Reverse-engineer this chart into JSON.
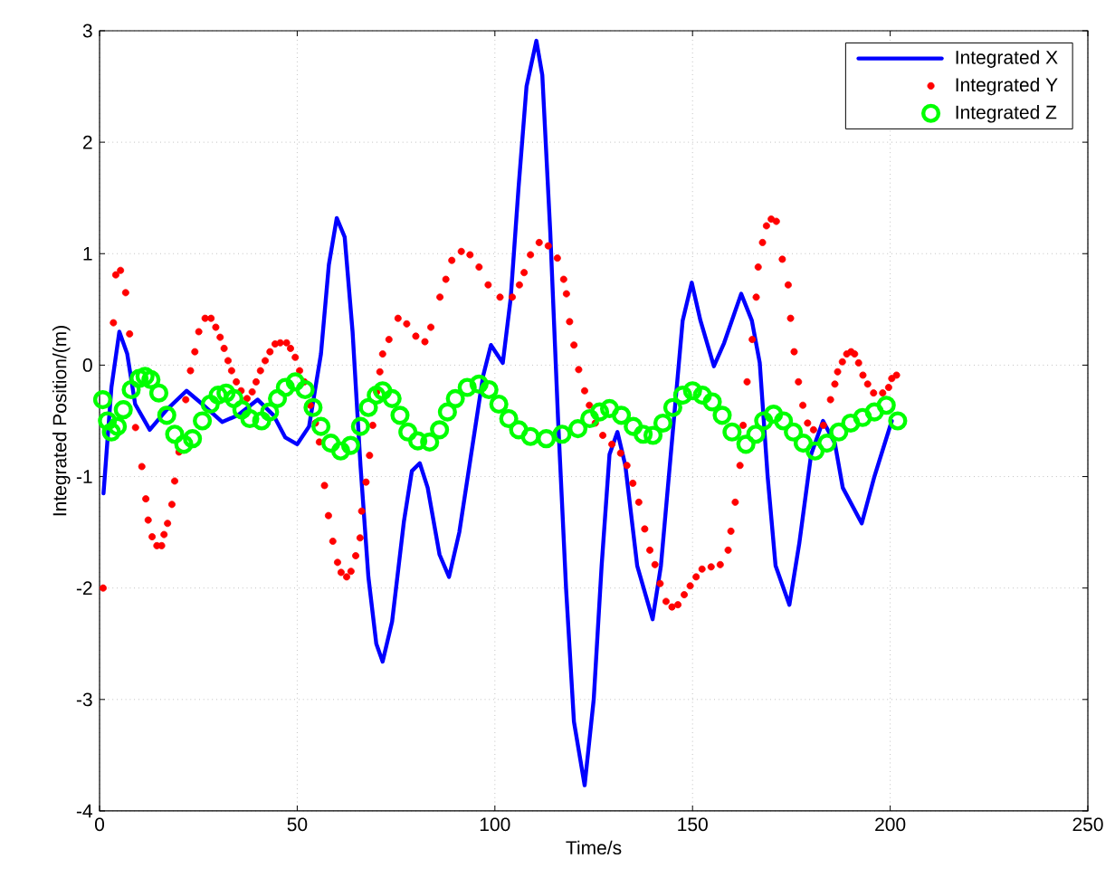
{
  "chart_data": {
    "type": "line",
    "xlabel": "Time/s",
    "ylabel": "Integrated Position/(m)",
    "xlim": [
      0,
      250
    ],
    "xticks": [
      0,
      50,
      100,
      150,
      200,
      250
    ],
    "ylim": [
      -4,
      3
    ],
    "yticks": [
      -4,
      -3,
      -2,
      -1,
      0,
      1,
      2,
      3
    ],
    "grid": true,
    "legend": "top right",
    "series": [
      {
        "name": "Integrated X",
        "color": "#0000ff",
        "marker": "none",
        "line_style": "solid",
        "x": [
          1,
          3,
          5,
          7,
          9,
          12.7,
          17,
          22,
          26,
          31,
          35,
          40,
          44,
          47,
          50,
          53,
          56,
          58,
          60,
          62,
          64,
          66,
          68,
          70,
          71.6,
          74,
          77,
          79,
          81,
          83,
          86,
          88.4,
          91,
          94,
          97,
          99,
          102,
          104,
          106,
          108,
          110.5,
          112,
          114,
          116,
          118,
          120,
          122.7,
          125,
          127,
          129,
          131,
          133,
          136,
          139.9,
          142,
          145,
          147.5,
          149.8,
          152,
          155.4,
          158,
          162.3,
          165,
          167,
          169,
          171,
          174.5,
          177,
          180,
          183,
          186,
          188,
          192.8,
          196,
          200.4
        ],
        "values": [
          -1.15,
          -0.2,
          0.3,
          0.1,
          -0.35,
          -0.58,
          -0.4,
          -0.23,
          -0.35,
          -0.51,
          -0.45,
          -0.31,
          -0.45,
          -0.65,
          -0.71,
          -0.55,
          0.1,
          0.9,
          1.32,
          1.15,
          0.3,
          -0.9,
          -1.9,
          -2.5,
          -2.66,
          -2.3,
          -1.4,
          -0.95,
          -0.88,
          -1.1,
          -1.7,
          -1.9,
          -1.5,
          -0.8,
          -0.1,
          0.18,
          0.02,
          0.6,
          1.6,
          2.5,
          2.91,
          2.6,
          1.2,
          -0.5,
          -2.0,
          -3.2,
          -3.77,
          -3.0,
          -1.8,
          -0.8,
          -0.6,
          -0.9,
          -1.8,
          -2.28,
          -1.8,
          -0.6,
          0.4,
          0.74,
          0.4,
          -0.01,
          0.2,
          0.64,
          0.4,
          0.02,
          -1.0,
          -1.8,
          -2.15,
          -1.6,
          -0.8,
          -0.5,
          -0.7,
          -1.1,
          -1.42,
          -1.0,
          -0.5
        ]
      },
      {
        "name": "Integrated Y",
        "type": "scatter",
        "color": "#ff0000",
        "marker": "circle",
        "x": [
          0.9,
          3.5,
          4.1,
          5.3,
          6.6,
          7.6,
          9.1,
          10.7,
          11.7,
          12.3,
          13.3,
          14.5,
          15.7,
          16.3,
          17.2,
          18.3,
          19,
          20.1,
          21.8,
          23,
          24.1,
          25.1,
          26.7,
          28.2,
          29.4,
          30.5,
          31.5,
          32.5,
          33.4,
          34.6,
          35.8,
          37.3,
          38.6,
          39.6,
          40.7,
          41.9,
          43.1,
          44.4,
          45.7,
          47.3,
          48.3,
          49.5,
          50.6,
          51.8,
          53.3,
          54.6,
          55.6,
          56.9,
          57.9,
          59,
          60.2,
          61.1,
          62.5,
          63.6,
          64.8,
          65.9,
          66.3,
          67.4,
          68.3,
          69.1,
          70.1,
          70.9,
          71.6,
          73.2,
          75.5,
          77.7,
          80.0,
          82.3,
          83.8,
          86.1,
          87.6,
          89.1,
          91.5,
          93.7,
          96.0,
          98.3,
          101.3,
          104.4,
          106.2,
          107.4,
          109.0,
          111.2,
          113.5,
          115.8,
          117.4,
          118.1,
          118.9,
          120.0,
          121.2,
          122.7,
          123.9,
          125.4,
          127.3,
          129.6,
          131.8,
          133.4,
          134.9,
          136.4,
          137.9,
          139.2,
          140.5,
          141.8,
          143.3,
          144.8,
          146.3,
          147.9,
          149.4,
          150.9,
          152.4,
          154.7,
          157.0,
          159,
          159.7,
          160.8,
          162,
          162.8,
          163.8,
          165.1,
          166.1,
          166.6,
          167.7,
          168.7,
          169.9,
          171.2,
          172.7,
          174.2,
          174.8,
          175.7,
          176.8,
          177.9,
          179.1,
          180.6,
          183.1,
          184.9,
          186,
          186.7,
          187.9,
          189,
          190.1,
          191,
          192,
          193.1,
          194.3,
          195.8,
          198.1,
          199.6,
          200.4,
          201.6
        ],
        "values": [
          -2.0,
          0.38,
          0.81,
          0.85,
          0.65,
          0.28,
          -0.56,
          -0.91,
          -1.2,
          -1.39,
          -1.54,
          -1.62,
          -1.62,
          -1.52,
          -1.42,
          -1.25,
          -1.04,
          -0.78,
          -0.31,
          -0.05,
          0.12,
          0.3,
          0.42,
          0.42,
          0.34,
          0.25,
          0.15,
          0.04,
          -0.05,
          -0.15,
          -0.23,
          -0.3,
          -0.24,
          -0.15,
          -0.05,
          0.04,
          0.12,
          0.19,
          0.2,
          0.2,
          0.15,
          0.07,
          -0.05,
          -0.15,
          -0.36,
          -0.52,
          -0.69,
          -1.08,
          -1.35,
          -1.58,
          -1.77,
          -1.86,
          -1.9,
          -1.85,
          -1.71,
          -1.55,
          -1.31,
          -1.05,
          -0.81,
          -0.54,
          -0.24,
          -0.06,
          0.1,
          0.23,
          0.42,
          0.37,
          0.26,
          0.21,
          0.34,
          0.61,
          0.77,
          0.94,
          1.02,
          0.99,
          0.88,
          0.72,
          0.61,
          0.61,
          0.72,
          0.83,
          0.99,
          1.1,
          1.07,
          0.96,
          0.77,
          0.64,
          0.39,
          0.18,
          -0.04,
          -0.23,
          -0.36,
          -0.52,
          -0.63,
          -0.71,
          -0.79,
          -0.9,
          -1.06,
          -1.23,
          -1.47,
          -1.66,
          -1.79,
          -1.96,
          -2.12,
          -2.17,
          -2.15,
          -2.06,
          -1.98,
          -1.9,
          -1.83,
          -1.81,
          -1.79,
          -1.66,
          -1.49,
          -1.23,
          -0.9,
          -0.54,
          -0.15,
          0.23,
          0.61,
          0.88,
          1.1,
          1.25,
          1.31,
          1.29,
          0.95,
          0.72,
          0.42,
          0.12,
          -0.15,
          -0.36,
          -0.52,
          -0.58,
          -0.54,
          -0.31,
          -0.17,
          -0.06,
          0.03,
          0.1,
          0.12,
          0.1,
          0.02,
          -0.09,
          -0.17,
          -0.25,
          -0.25,
          -0.2,
          -0.12,
          -0.09
        ]
      },
      {
        "name": "Integrated Z",
        "type": "scatter",
        "color": "#00ff00",
        "marker": "circle",
        "x": [
          0.8,
          2,
          3,
          4.5,
          6,
          8,
          10,
          11.5,
          13,
          15,
          17,
          19,
          21.3,
          23.5,
          26,
          28,
          30,
          32,
          34,
          36,
          38,
          41,
          43,
          45,
          47,
          49.5,
          52,
          54,
          56,
          58.5,
          61,
          63.5,
          66,
          68,
          70,
          71.6,
          74,
          76,
          78,
          80.5,
          83.5,
          86,
          88,
          90,
          93,
          96,
          98.5,
          101,
          103.5,
          106,
          109,
          113,
          117,
          121,
          124,
          126.5,
          129,
          132,
          135,
          137.5,
          140,
          142.5,
          145,
          147.5,
          150,
          152.5,
          155,
          157.5,
          160,
          163.5,
          166,
          168,
          170.5,
          173,
          175.5,
          178,
          181,
          184,
          187,
          190,
          193,
          196,
          199,
          201.9
        ],
        "values": [
          -0.31,
          -0.5,
          -0.6,
          -0.55,
          -0.4,
          -0.22,
          -0.12,
          -0.1,
          -0.13,
          -0.25,
          -0.45,
          -0.62,
          -0.71,
          -0.66,
          -0.5,
          -0.35,
          -0.27,
          -0.25,
          -0.3,
          -0.4,
          -0.48,
          -0.5,
          -0.42,
          -0.3,
          -0.2,
          -0.15,
          -0.22,
          -0.38,
          -0.55,
          -0.7,
          -0.77,
          -0.72,
          -0.55,
          -0.38,
          -0.27,
          -0.23,
          -0.3,
          -0.45,
          -0.6,
          -0.68,
          -0.69,
          -0.58,
          -0.42,
          -0.3,
          -0.2,
          -0.17,
          -0.22,
          -0.35,
          -0.48,
          -0.58,
          -0.64,
          -0.66,
          -0.62,
          -0.57,
          -0.48,
          -0.42,
          -0.39,
          -0.45,
          -0.55,
          -0.62,
          -0.63,
          -0.52,
          -0.38,
          -0.27,
          -0.23,
          -0.27,
          -0.33,
          -0.45,
          -0.6,
          -0.71,
          -0.62,
          -0.5,
          -0.44,
          -0.5,
          -0.6,
          -0.7,
          -0.77,
          -0.7,
          -0.6,
          -0.52,
          -0.47,
          -0.42,
          -0.36,
          -0.5
        ]
      }
    ]
  }
}
